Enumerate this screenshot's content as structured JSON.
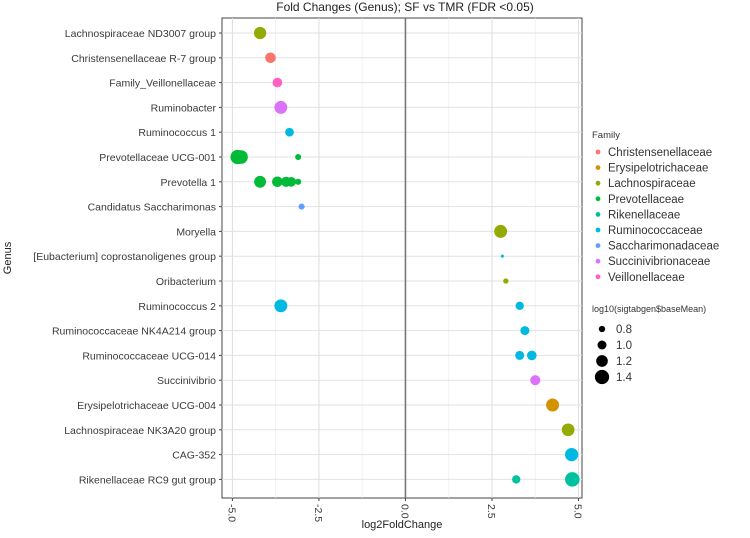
{
  "chart_data": {
    "type": "scatter",
    "title": "Fold Changes (Genus); SF vs TMR (FDR <0.05)",
    "xlabel": "log2FoldChange",
    "ylabel": "Genus",
    "xlim": [
      -5.3,
      5.1
    ],
    "xticks": [
      -5.0,
      -2.5,
      0.0,
      2.5,
      5.0
    ],
    "xtick_labels": [
      "-5.0",
      "-2.5",
      "0.0",
      "2.5",
      "5.0"
    ],
    "grid": true,
    "legend_position": "right",
    "categories": [
      "Lachnospiraceae ND3007 group",
      "Christensenellaceae R-7 group",
      "Family_Veillonellaceae",
      "Ruminobacter",
      "Ruminococcus 1",
      "Prevotellaceae UCG-001",
      "Prevotella 1",
      "Candidatus Saccharimonas",
      "Moryella",
      "[Eubacterium] coprostanoligenes group",
      "Oribacterium",
      "Ruminococcus 2",
      "Ruminococcaceae NK4A214 group",
      "Ruminococcaceae UCG-014",
      "Succinivibrio",
      "Erysipelotrichaceae UCG-004",
      "Lachnospiraceae NK3A20 group",
      "CAG-352",
      "Rikenellaceae RC9 gut group"
    ],
    "family_legend": {
      "title": "Family",
      "entries": [
        {
          "name": "Christensenellaceae",
          "color": "#F8766D"
        },
        {
          "name": "Erysipelotrichaceae",
          "color": "#D39200"
        },
        {
          "name": "Lachnospiraceae",
          "color": "#93AA00"
        },
        {
          "name": "Prevotellaceae",
          "color": "#00BA38"
        },
        {
          "name": "Rikenellaceae",
          "color": "#00C19F"
        },
        {
          "name": "Ruminococcaceae",
          "color": "#00B9E3"
        },
        {
          "name": "Saccharimonadaceae",
          "color": "#619CFF"
        },
        {
          "name": "Succinivibrionaceae",
          "color": "#DB72FB"
        },
        {
          "name": "Veillonellaceae",
          "color": "#FF61C3"
        }
      ]
    },
    "size_legend": {
      "title": "log10(sigtabgen$baseMean)",
      "values": [
        0.8,
        1.0,
        1.2,
        1.4
      ],
      "labels": [
        "0.8",
        "1.0",
        "1.2",
        "1.4"
      ]
    },
    "points": [
      {
        "genus": "Lachnospiraceae ND3007 group",
        "x": -4.2,
        "family": "Lachnospiraceae",
        "size": 1.25
      },
      {
        "genus": "Christensenellaceae R-7 group",
        "x": -3.9,
        "family": "Christensenellaceae",
        "size": 1.12
      },
      {
        "genus": "Family_Veillonellaceae",
        "x": -3.7,
        "family": "Veillonellaceae",
        "size": 1.05
      },
      {
        "genus": "Ruminobacter",
        "x": -3.6,
        "family": "Succinivibrionaceae",
        "size": 1.3
      },
      {
        "genus": "Ruminococcus 1",
        "x": -3.35,
        "family": "Ruminococcaceae",
        "size": 0.98
      },
      {
        "genus": "Prevotellaceae UCG-001",
        "x": -4.85,
        "family": "Prevotellaceae",
        "size": 1.4
      },
      {
        "genus": "Prevotellaceae UCG-001",
        "x": -4.75,
        "family": "Prevotellaceae",
        "size": 1.35
      },
      {
        "genus": "Prevotellaceae UCG-001",
        "x": -3.1,
        "family": "Prevotellaceae",
        "size": 0.78
      },
      {
        "genus": "Prevotella 1",
        "x": -4.2,
        "family": "Prevotellaceae",
        "size": 1.22
      },
      {
        "genus": "Prevotella 1",
        "x": -3.7,
        "family": "Prevotellaceae",
        "size": 1.12
      },
      {
        "genus": "Prevotella 1",
        "x": -3.45,
        "family": "Prevotellaceae",
        "size": 1.08
      },
      {
        "genus": "Prevotella 1",
        "x": -3.3,
        "family": "Prevotellaceae",
        "size": 1.05
      },
      {
        "genus": "Prevotella 1",
        "x": -3.1,
        "family": "Prevotellaceae",
        "size": 0.78
      },
      {
        "genus": "Candidatus Saccharimonas",
        "x": -3.0,
        "family": "Saccharimonadaceae",
        "size": 0.78
      },
      {
        "genus": "Moryella",
        "x": 2.75,
        "family": "Lachnospiraceae",
        "size": 1.3
      },
      {
        "genus": "[Eubacterium] coprostanoligenes group",
        "x": 2.8,
        "family": "Ruminococcaceae",
        "size": 0.55
      },
      {
        "genus": "Oribacterium",
        "x": 2.9,
        "family": "Lachnospiraceae",
        "size": 0.72
      },
      {
        "genus": "Ruminococcus 2",
        "x": -3.6,
        "family": "Ruminococcaceae",
        "size": 1.3
      },
      {
        "genus": "Ruminococcus 2",
        "x": 3.3,
        "family": "Ruminococcaceae",
        "size": 0.95
      },
      {
        "genus": "Ruminococcaceae NK4A214 group",
        "x": 3.45,
        "family": "Ruminococcaceae",
        "size": 1.0
      },
      {
        "genus": "Ruminococcaceae UCG-014",
        "x": 3.3,
        "family": "Ruminococcaceae",
        "size": 1.0
      },
      {
        "genus": "Ruminococcaceae UCG-014",
        "x": 3.65,
        "family": "Ruminococcaceae",
        "size": 1.05
      },
      {
        "genus": "Succinivibrio",
        "x": 3.75,
        "family": "Succinivibrionaceae",
        "size": 1.08
      },
      {
        "genus": "Erysipelotrichaceae UCG-004",
        "x": 4.25,
        "family": "Erysipelotrichaceae",
        "size": 1.3
      },
      {
        "genus": "Lachnospiraceae NK3A20 group",
        "x": 4.7,
        "family": "Lachnospiraceae",
        "size": 1.28
      },
      {
        "genus": "CAG-352",
        "x": 4.8,
        "family": "Ruminococcaceae",
        "size": 1.32
      },
      {
        "genus": "Rikenellaceae RC9 gut group",
        "x": 3.2,
        "family": "Rikenellaceae",
        "size": 0.95
      },
      {
        "genus": "Rikenellaceae RC9 gut group",
        "x": 4.82,
        "family": "Rikenellaceae",
        "size": 1.42
      }
    ]
  }
}
